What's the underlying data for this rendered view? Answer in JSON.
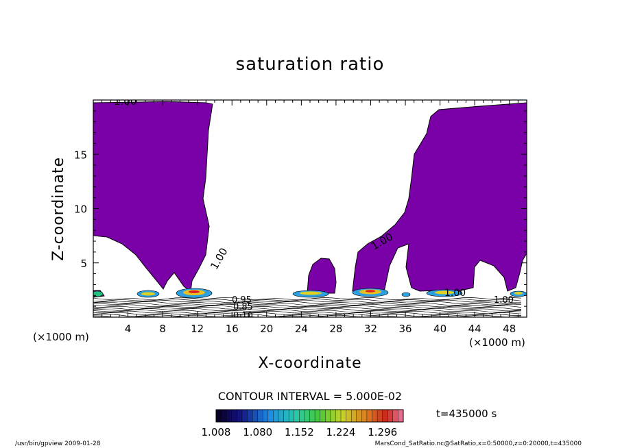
{
  "chart_data": {
    "type": "heatmap",
    "title": "saturation ratio",
    "xlabel": "X-coordinate",
    "ylabel": "Z-coordinate",
    "x_unit": "(×1000 m)",
    "z_unit": "(×1000 m)",
    "xlim": [
      0,
      50
    ],
    "ylim": [
      0,
      20
    ],
    "x_ticks": [
      4,
      8,
      12,
      16,
      20,
      24,
      28,
      32,
      36,
      40,
      44,
      48
    ],
    "y_ticks": [
      5,
      10,
      15
    ],
    "contour_interval": "CONTOUR INTERVAL = 5.000E-02",
    "contour_labels": [
      "1.00",
      "1.00",
      "1.00",
      "1.00",
      "1.00",
      "0.95",
      "0.85",
      "0.10"
    ],
    "colorbar": {
      "min": 1.008,
      "max": 1.332,
      "step": 0.009,
      "tick_labels": [
        "1.008",
        "1.080",
        "1.152",
        "1.224",
        "1.296"
      ]
    },
    "fill_color_supersaturated": "#7a00a8",
    "time_label": "t=435000  s",
    "footer_left": "/usr/bin/gpview   2009-01-28",
    "footer_right": "MarsCond_SatRatio.nc@SatRatio,x=0:50000,z=0:20000,t=435000"
  }
}
